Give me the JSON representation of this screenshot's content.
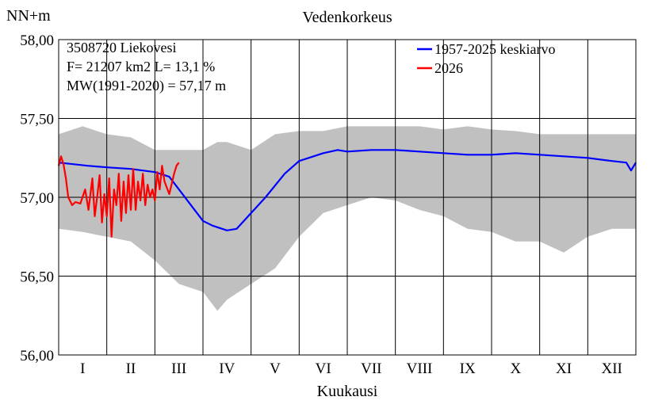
{
  "chart_data": {
    "type": "line",
    "title": "Vedenkorkeus",
    "ylabel": "NN+m",
    "xlabel": "Kuukausi",
    "ylim": [
      56.0,
      58.0
    ],
    "xlim": [
      0,
      12
    ],
    "yticks": [
      56.0,
      56.5,
      57.0,
      57.5,
      58.0
    ],
    "ytick_labels": [
      "56,00",
      "56,50",
      "57,00",
      "57,50",
      "58,00"
    ],
    "months": [
      "I",
      "II",
      "III",
      "IV",
      "V",
      "VI",
      "VII",
      "VIII",
      "IX",
      "X",
      "XI",
      "XII"
    ],
    "info": [
      "3508720 Liekovesi",
      "F=  21207 km2 L=  13,1 %",
      "MW(1991-2020) = 57,17 m"
    ],
    "range_band": {
      "name": "min-max range",
      "color": "#c0c0c0",
      "x": [
        0.0,
        0.5,
        1.0,
        1.5,
        2.0,
        2.5,
        3.0,
        3.3,
        3.5,
        4.0,
        4.5,
        5.0,
        5.5,
        6.0,
        6.5,
        7.0,
        7.5,
        8.0,
        8.5,
        9.0,
        9.5,
        10.0,
        10.5,
        11.0,
        11.5,
        12.0
      ],
      "max": [
        57.4,
        57.45,
        57.4,
        57.38,
        57.3,
        57.3,
        57.3,
        57.35,
        57.35,
        57.3,
        57.4,
        57.42,
        57.42,
        57.45,
        57.45,
        57.45,
        57.45,
        57.43,
        57.45,
        57.43,
        57.42,
        57.4,
        57.4,
        57.4,
        57.4,
        57.4
      ],
      "min": [
        56.8,
        56.78,
        56.75,
        56.72,
        56.6,
        56.45,
        56.4,
        56.28,
        56.35,
        56.45,
        56.55,
        56.75,
        56.9,
        56.95,
        57.0,
        56.98,
        56.92,
        56.88,
        56.8,
        56.78,
        56.72,
        56.72,
        56.65,
        56.75,
        56.8,
        56.8
      ]
    },
    "series": [
      {
        "name": "1957-2025 keskiarvo",
        "color": "#0000ff",
        "x": [
          0.0,
          0.3,
          0.6,
          1.0,
          1.5,
          2.0,
          2.3,
          2.5,
          2.8,
          3.0,
          3.2,
          3.5,
          3.7,
          4.0,
          4.3,
          4.7,
          5.0,
          5.3,
          5.5,
          5.8,
          6.0,
          6.5,
          7.0,
          7.5,
          8.0,
          8.5,
          9.0,
          9.5,
          10.0,
          10.5,
          11.0,
          11.5,
          11.8,
          11.9,
          12.0
        ],
        "y": [
          57.22,
          57.21,
          57.2,
          57.19,
          57.18,
          57.16,
          57.13,
          57.05,
          56.93,
          56.85,
          56.82,
          56.79,
          56.8,
          56.9,
          57.0,
          57.15,
          57.23,
          57.26,
          57.28,
          57.3,
          57.29,
          57.3,
          57.3,
          57.29,
          57.28,
          57.27,
          57.27,
          57.28,
          57.27,
          57.26,
          57.25,
          57.23,
          57.22,
          57.17,
          57.22
        ]
      },
      {
        "name": "2026",
        "color": "#ff0000",
        "x": [
          0.0,
          0.05,
          0.1,
          0.15,
          0.2,
          0.28,
          0.35,
          0.45,
          0.55,
          0.62,
          0.7,
          0.75,
          0.8,
          0.85,
          0.9,
          0.95,
          1.0,
          1.05,
          1.1,
          1.15,
          1.2,
          1.25,
          1.3,
          1.35,
          1.4,
          1.45,
          1.5,
          1.55,
          1.6,
          1.65,
          1.7,
          1.75,
          1.8,
          1.85,
          1.9,
          1.95,
          2.0,
          2.05,
          2.1,
          2.15,
          2.2,
          2.3,
          2.4,
          2.45,
          2.5
        ],
        "y": [
          57.2,
          57.26,
          57.21,
          57.12,
          57.0,
          56.95,
          56.97,
          56.96,
          57.05,
          56.92,
          57.12,
          56.88,
          57.0,
          57.14,
          56.84,
          57.02,
          56.88,
          57.12,
          56.75,
          57.05,
          56.95,
          57.15,
          56.85,
          57.1,
          56.9,
          57.14,
          56.92,
          57.18,
          56.92,
          57.1,
          56.98,
          57.15,
          56.95,
          57.08,
          57.0,
          57.05,
          56.98,
          57.16,
          57.05,
          57.2,
          57.1,
          57.02,
          57.15,
          57.2,
          57.22
        ]
      }
    ],
    "legend_position": "top-right"
  }
}
